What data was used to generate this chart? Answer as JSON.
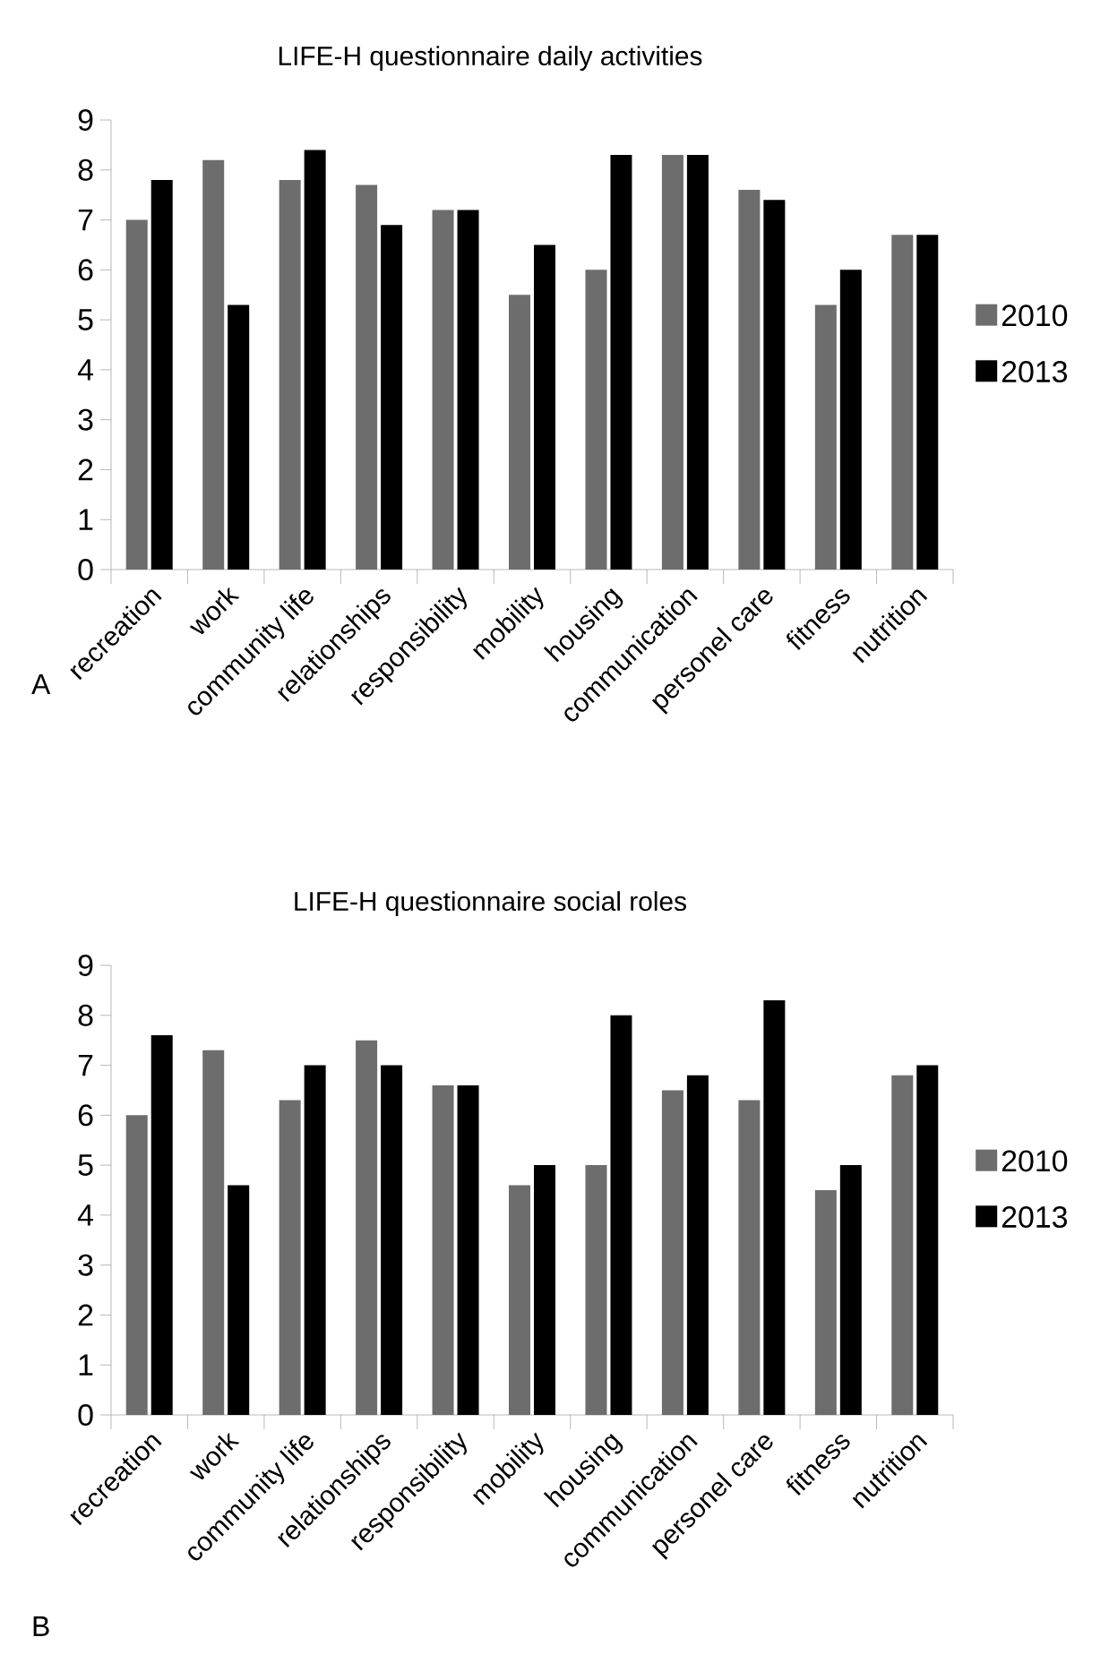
{
  "chart_data": [
    {
      "type": "bar",
      "title": "LIFE-H questionnaire daily activities",
      "categories": [
        "recreation",
        "work",
        "community life",
        "relationships",
        "responsibility",
        "mobility",
        "housing",
        "communication",
        "personel care",
        "fitness",
        "nutrition"
      ],
      "series": [
        {
          "name": "2010",
          "color": "#6d6d6d",
          "values": [
            7.0,
            8.2,
            7.8,
            7.7,
            7.2,
            5.5,
            6.0,
            8.3,
            7.6,
            5.3,
            6.7
          ]
        },
        {
          "name": "2013",
          "color": "#000000",
          "values": [
            7.8,
            5.3,
            8.4,
            6.9,
            7.2,
            6.5,
            8.3,
            8.3,
            7.4,
            6.0,
            6.7
          ]
        }
      ],
      "ylim": [
        0,
        9
      ],
      "yticks": [
        0,
        1,
        2,
        3,
        4,
        5,
        6,
        7,
        8,
        9
      ],
      "legend": "right",
      "annotations": [
        "A"
      ]
    },
    {
      "type": "bar",
      "title": "LIFE-H questionnaire social roles",
      "categories": [
        "recreation",
        "work",
        "community life",
        "relationships",
        "responsibility",
        "mobility",
        "housing",
        "communication",
        "personel care",
        "fitness",
        "nutrition"
      ],
      "series": [
        {
          "name": "2010",
          "color": "#6d6d6d",
          "values": [
            6.0,
            7.3,
            6.3,
            7.5,
            6.6,
            4.6,
            5.0,
            6.5,
            6.3,
            4.5,
            6.8
          ]
        },
        {
          "name": "2013",
          "color": "#000000",
          "values": [
            7.6,
            4.6,
            7.0,
            7.0,
            6.6,
            5.0,
            8.0,
            6.8,
            8.3,
            5.0,
            7.0
          ]
        }
      ],
      "ylim": [
        0,
        9
      ],
      "yticks": [
        0,
        1,
        2,
        3,
        4,
        5,
        6,
        7,
        8,
        9
      ],
      "legend": "right",
      "annotations": [
        "B"
      ]
    }
  ]
}
